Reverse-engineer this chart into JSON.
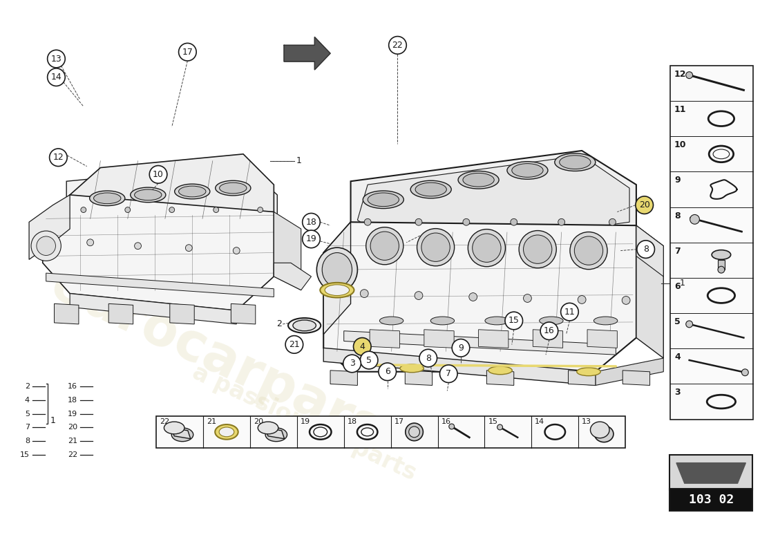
{
  "bg_color": "#ffffff",
  "line_color": "#1a1a1a",
  "part_number": "103 02",
  "highlight_yellow": "#e8d870",
  "watermark_color": "#d4c87a",
  "right_panel_items": [
    12,
    11,
    10,
    9,
    8,
    7,
    6,
    5,
    4,
    3
  ],
  "bottom_strip_items": [
    22,
    21,
    20,
    19,
    18,
    17,
    16,
    15,
    14,
    13
  ],
  "left_legend_col1": [
    2,
    4,
    5,
    7,
    8,
    15
  ],
  "left_legend_col2": [
    16,
    18,
    19,
    20,
    21,
    22
  ],
  "arrow_color": "#555555",
  "callout_font": 9,
  "label_font": 8
}
